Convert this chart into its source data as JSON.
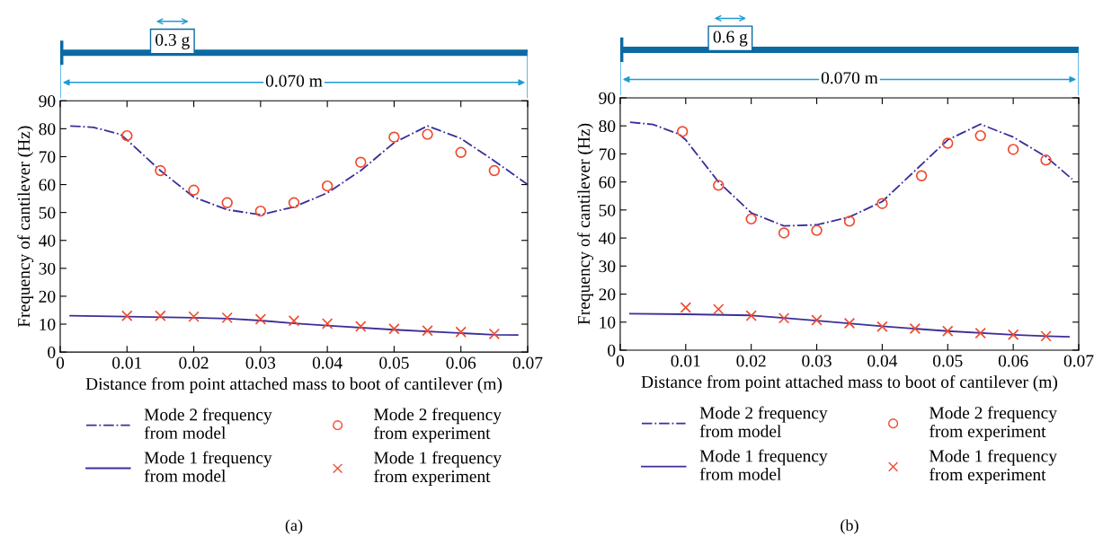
{
  "chart_data": [
    {
      "type": "line",
      "xlabel": "Distance from point attached mass to boot of cantilever (m)",
      "ylabel": "Frequency of cantilever (Hz)",
      "xlim": [
        0,
        0.07
      ],
      "ylim": [
        0,
        90
      ],
      "xticks": [
        0,
        0.01,
        0.02,
        0.03,
        0.04,
        0.05,
        0.06,
        0.07
      ],
      "yticks": [
        0,
        10,
        20,
        30,
        40,
        50,
        60,
        70,
        80,
        90
      ],
      "grid": false,
      "legend": "bottom",
      "annotations": [
        "0.3 g",
        "0.070 m",
        "(a)"
      ],
      "series": [
        {
          "name": "Mode 2 frequency\nfrom model",
          "type": "line",
          "line_style": "dashdot",
          "marker": "none",
          "color": "#3b2f9a",
          "x": [
            0.0015,
            0.005,
            0.009,
            0.01,
            0.015,
            0.02,
            0.025,
            0.03,
            0.035,
            0.04,
            0.045,
            0.05,
            0.055,
            0.06,
            0.065,
            0.07
          ],
          "values": [
            81,
            80.5,
            78,
            76,
            65,
            55.5,
            51,
            49.2,
            52,
            57,
            65,
            75,
            81,
            76.5,
            68.5,
            60
          ]
        },
        {
          "name": "Mode 1 frequency\nfrom model",
          "type": "line",
          "line_style": "solid",
          "marker": "none",
          "color": "#3b2f9a",
          "x": [
            0.0015,
            0.01,
            0.02,
            0.025,
            0.03,
            0.035,
            0.04,
            0.05,
            0.06,
            0.065,
            0.0685
          ],
          "values": [
            13,
            12.7,
            12.3,
            12,
            11.3,
            10.3,
            9.5,
            8,
            6.8,
            6.2,
            6.1
          ]
        },
        {
          "name": "Mode 2 frequency\nfrom experiment",
          "type": "scatter",
          "marker": "circle",
          "color": "#ef4a2f",
          "x": [
            0.01,
            0.015,
            0.02,
            0.025,
            0.03,
            0.035,
            0.04,
            0.045,
            0.05,
            0.055,
            0.06,
            0.065
          ],
          "values": [
            77.5,
            65,
            58,
            53.5,
            50.5,
            53.5,
            59.5,
            68,
            77,
            78,
            71.5,
            65
          ]
        },
        {
          "name": "Mode 1 frequency\nfrom experiment",
          "type": "scatter",
          "marker": "cross",
          "color": "#ef4a2f",
          "x": [
            0.01,
            0.015,
            0.02,
            0.025,
            0.03,
            0.035,
            0.04,
            0.045,
            0.05,
            0.055,
            0.06,
            0.065
          ],
          "values": [
            13,
            13,
            12.7,
            12.3,
            11.8,
            11.2,
            10.2,
            9.2,
            8.3,
            7.7,
            7.2,
            6.5
          ]
        }
      ]
    },
    {
      "type": "line",
      "xlabel": "Distance from point attached mass to boot of cantilever (m)",
      "ylabel": "Frequency of cantilever (Hz)",
      "xlim": [
        0,
        0.07
      ],
      "ylim": [
        0,
        90
      ],
      "xticks": [
        0,
        0.01,
        0.02,
        0.03,
        0.04,
        0.05,
        0.06,
        0.07
      ],
      "yticks": [
        0,
        10,
        20,
        30,
        40,
        50,
        60,
        70,
        80,
        90
      ],
      "grid": false,
      "legend": "bottom",
      "annotations": [
        "0.6 g",
        "0.070 m",
        "(b)"
      ],
      "series": [
        {
          "name": "Mode 2 frequency\nfrom model",
          "type": "line",
          "line_style": "dashdot",
          "marker": "none",
          "color": "#3b2f9a",
          "x": [
            0.0015,
            0.005,
            0.009,
            0.01,
            0.015,
            0.02,
            0.025,
            0.03,
            0.035,
            0.04,
            0.045,
            0.05,
            0.055,
            0.06,
            0.065,
            0.069
          ],
          "values": [
            81.3,
            80.5,
            77,
            75,
            60,
            49,
            44.3,
            44.7,
            47.5,
            53,
            64,
            75,
            80.6,
            76,
            69,
            61
          ]
        },
        {
          "name": "Mode 1 frequency\nfrom model",
          "type": "line",
          "line_style": "solid",
          "marker": "none",
          "color": "#3b2f9a",
          "x": [
            0.0015,
            0.01,
            0.02,
            0.025,
            0.03,
            0.04,
            0.05,
            0.06,
            0.065,
            0.0685
          ],
          "values": [
            13,
            12.8,
            12.4,
            11.5,
            10.5,
            8.5,
            6.8,
            5.5,
            5,
            4.8
          ]
        },
        {
          "name": "Mode 2 frequency\nfrom experiment",
          "type": "scatter",
          "marker": "circle",
          "color": "#ef4a2f",
          "x": [
            0.0095,
            0.015,
            0.02,
            0.025,
            0.03,
            0.035,
            0.04,
            0.046,
            0.05,
            0.055,
            0.06,
            0.065
          ],
          "values": [
            78,
            58.8,
            46.8,
            41.8,
            42.7,
            46,
            52.3,
            62.2,
            73.8,
            76.5,
            71.6,
            67.8
          ]
        },
        {
          "name": "Mode 1 frequency\nfrom experiment",
          "type": "scatter",
          "marker": "cross",
          "color": "#ef4a2f",
          "x": [
            0.01,
            0.015,
            0.02,
            0.025,
            0.03,
            0.035,
            0.04,
            0.045,
            0.05,
            0.055,
            0.06,
            0.065
          ],
          "values": [
            15.2,
            14.6,
            12.3,
            11.4,
            10.7,
            9.6,
            8.4,
            7.7,
            6.8,
            6.1,
            5.5,
            5
          ]
        }
      ]
    }
  ]
}
